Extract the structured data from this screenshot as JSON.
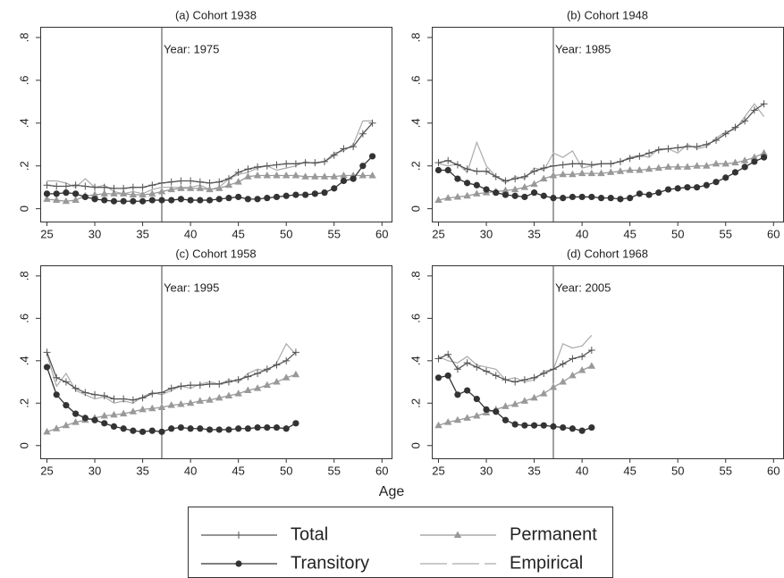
{
  "chart_data": [
    {
      "type": "line",
      "title": "(a) Cohort 1938",
      "x": [
        25,
        26,
        27,
        28,
        29,
        30,
        31,
        32,
        33,
        34,
        35,
        36,
        37,
        38,
        39,
        40,
        41,
        42,
        43,
        44,
        45,
        46,
        47,
        48,
        49,
        50,
        51,
        52,
        53,
        54,
        55,
        56,
        57,
        58,
        59
      ],
      "series": [
        {
          "name": "Total",
          "color": "#555555",
          "marker": "plus",
          "values": [
            0.11,
            0.105,
            0.105,
            0.11,
            0.105,
            0.1,
            0.1,
            0.095,
            0.095,
            0.1,
            0.1,
            0.11,
            0.12,
            0.125,
            0.13,
            0.13,
            0.125,
            0.12,
            0.125,
            0.14,
            0.17,
            0.185,
            0.195,
            0.2,
            0.205,
            0.21,
            0.21,
            0.215,
            0.215,
            0.22,
            0.25,
            0.28,
            0.29,
            0.35,
            0.4
          ]
        },
        {
          "name": "Transitory",
          "color": "#333333",
          "marker": "circle",
          "values": [
            0.07,
            0.07,
            0.075,
            0.07,
            0.055,
            0.045,
            0.04,
            0.035,
            0.035,
            0.035,
            0.035,
            0.04,
            0.04,
            0.04,
            0.045,
            0.04,
            0.04,
            0.04,
            0.045,
            0.05,
            0.055,
            0.045,
            0.045,
            0.05,
            0.055,
            0.06,
            0.065,
            0.065,
            0.07,
            0.075,
            0.095,
            0.13,
            0.14,
            0.2,
            0.245
          ]
        },
        {
          "name": "Permanent",
          "color": "#999999",
          "marker": "triangle",
          "values": [
            0.045,
            0.04,
            0.035,
            0.04,
            0.06,
            0.065,
            0.07,
            0.07,
            0.07,
            0.065,
            0.065,
            0.07,
            0.08,
            0.09,
            0.095,
            0.095,
            0.095,
            0.09,
            0.095,
            0.11,
            0.125,
            0.15,
            0.155,
            0.155,
            0.155,
            0.155,
            0.155,
            0.15,
            0.15,
            0.15,
            0.15,
            0.155,
            0.155,
            0.155,
            0.155
          ]
        },
        {
          "name": "Empirical",
          "color": "#aaaaaa",
          "marker": "none",
          "dashed": true,
          "values": [
            0.13,
            0.13,
            0.12,
            0.1,
            0.14,
            0.1,
            0.11,
            0.08,
            0.07,
            0.08,
            0.07,
            0.09,
            0.1,
            0.1,
            0.1,
            0.1,
            0.11,
            0.09,
            0.1,
            0.14,
            0.16,
            0.17,
            0.19,
            0.2,
            0.18,
            0.19,
            0.2,
            0.22,
            0.21,
            0.22,
            0.26,
            0.27,
            0.3,
            0.41,
            0.41
          ]
        }
      ],
      "vline": 37,
      "annotation": "Year: 1975",
      "xlim": [
        24.3,
        61
      ],
      "xticks": [
        25,
        30,
        35,
        40,
        45,
        50,
        55,
        60
      ],
      "ylim": [
        -0.06,
        0.85
      ],
      "yticks": [
        0,
        {
          "value": 0.2,
          "label": ".2"
        },
        {
          "value": 0.4,
          "label": ".4"
        },
        {
          "value": 0.6,
          "label": ".6"
        },
        {
          "value": 0.8,
          "label": ".8"
        }
      ]
    },
    {
      "type": "line",
      "title": "(b) Cohort 1948",
      "x": [
        25,
        26,
        27,
        28,
        29,
        30,
        31,
        32,
        33,
        34,
        35,
        36,
        37,
        38,
        39,
        40,
        41,
        42,
        43,
        44,
        45,
        46,
        47,
        48,
        49,
        50,
        51,
        52,
        53,
        54,
        55,
        56,
        57,
        58,
        59
      ],
      "series": [
        {
          "name": "Total",
          "color": "#555555",
          "marker": "plus",
          "values": [
            0.215,
            0.225,
            0.205,
            0.185,
            0.175,
            0.175,
            0.15,
            0.13,
            0.14,
            0.15,
            0.175,
            0.19,
            0.2,
            0.205,
            0.21,
            0.21,
            0.205,
            0.21,
            0.21,
            0.22,
            0.235,
            0.245,
            0.26,
            0.275,
            0.28,
            0.285,
            0.29,
            0.29,
            0.3,
            0.32,
            0.35,
            0.38,
            0.41,
            0.46,
            0.49
          ]
        },
        {
          "name": "Transitory",
          "color": "#333333",
          "marker": "circle",
          "values": [
            0.18,
            0.18,
            0.14,
            0.12,
            0.11,
            0.09,
            0.075,
            0.065,
            0.06,
            0.055,
            0.075,
            0.06,
            0.05,
            0.05,
            0.055,
            0.055,
            0.055,
            0.05,
            0.05,
            0.045,
            0.05,
            0.07,
            0.065,
            0.075,
            0.09,
            0.095,
            0.1,
            0.1,
            0.11,
            0.125,
            0.145,
            0.17,
            0.195,
            0.22,
            0.24
          ]
        },
        {
          "name": "Permanent",
          "color": "#999999",
          "marker": "triangle",
          "values": [
            0.04,
            0.05,
            0.055,
            0.06,
            0.07,
            0.075,
            0.08,
            0.085,
            0.09,
            0.1,
            0.115,
            0.14,
            0.155,
            0.16,
            0.16,
            0.165,
            0.165,
            0.165,
            0.17,
            0.175,
            0.18,
            0.18,
            0.185,
            0.19,
            0.195,
            0.195,
            0.195,
            0.2,
            0.2,
            0.21,
            0.21,
            0.215,
            0.225,
            0.24,
            0.26
          ]
        },
        {
          "name": "Empirical",
          "color": "#aaaaaa",
          "marker": "none",
          "dashed": true,
          "values": [
            0.21,
            0.2,
            0.21,
            0.17,
            0.31,
            0.2,
            0.15,
            0.12,
            0.15,
            0.14,
            0.19,
            0.18,
            0.26,
            0.24,
            0.27,
            0.19,
            0.2,
            0.21,
            0.21,
            0.22,
            0.24,
            0.25,
            0.24,
            0.28,
            0.28,
            0.26,
            0.3,
            0.28,
            0.29,
            0.33,
            0.36,
            0.37,
            0.43,
            0.49,
            0.43
          ]
        }
      ],
      "vline": 37,
      "annotation": "Year: 1985",
      "xlim": [
        24.3,
        61
      ],
      "xticks": [
        25,
        30,
        35,
        40,
        45,
        50,
        55,
        60
      ],
      "ylim": [
        -0.06,
        0.85
      ],
      "yticks": [
        0,
        {
          "value": 0.2,
          "label": ".2"
        },
        {
          "value": 0.4,
          "label": ".4"
        },
        {
          "value": 0.6,
          "label": ".6"
        },
        {
          "value": 0.8,
          "label": ".8"
        }
      ]
    },
    {
      "type": "line",
      "title": "(c) Cohort 1958",
      "x": [
        25,
        26,
        27,
        28,
        29,
        30,
        31,
        32,
        33,
        34,
        35,
        36,
        37,
        38,
        39,
        40,
        41,
        42,
        43,
        44,
        45,
        46,
        47,
        48,
        49,
        50,
        51
      ],
      "series": [
        {
          "name": "Total",
          "color": "#555555",
          "marker": "plus",
          "values": [
            0.44,
            0.32,
            0.3,
            0.27,
            0.25,
            0.24,
            0.235,
            0.22,
            0.22,
            0.215,
            0.225,
            0.245,
            0.25,
            0.27,
            0.28,
            0.285,
            0.285,
            0.29,
            0.29,
            0.3,
            0.31,
            0.325,
            0.34,
            0.36,
            0.38,
            0.4,
            0.44
          ]
        },
        {
          "name": "Transitory",
          "color": "#333333",
          "marker": "circle",
          "values": [
            0.37,
            0.24,
            0.19,
            0.15,
            0.13,
            0.12,
            0.105,
            0.09,
            0.08,
            0.07,
            0.065,
            0.07,
            0.065,
            0.08,
            0.085,
            0.08,
            0.08,
            0.075,
            0.075,
            0.075,
            0.08,
            0.08,
            0.085,
            0.085,
            0.085,
            0.08,
            0.105
          ]
        },
        {
          "name": "Permanent",
          "color": "#999999",
          "marker": "triangle",
          "values": [
            0.065,
            0.08,
            0.095,
            0.11,
            0.12,
            0.13,
            0.14,
            0.145,
            0.15,
            0.16,
            0.17,
            0.175,
            0.18,
            0.19,
            0.195,
            0.2,
            0.21,
            0.215,
            0.225,
            0.235,
            0.245,
            0.26,
            0.27,
            0.285,
            0.3,
            0.32,
            0.335
          ]
        },
        {
          "name": "Empirical",
          "color": "#aaaaaa",
          "marker": "none",
          "dashed": true,
          "values": [
            0.43,
            0.28,
            0.34,
            0.26,
            0.24,
            0.22,
            0.23,
            0.2,
            0.21,
            0.2,
            0.23,
            0.25,
            0.24,
            0.26,
            0.28,
            0.27,
            0.29,
            0.3,
            0.29,
            0.31,
            0.3,
            0.34,
            0.36,
            0.35,
            0.39,
            0.48,
            0.43
          ]
        }
      ],
      "vline": 37,
      "annotation": "Year: 1995",
      "xlim": [
        24.3,
        61
      ],
      "xticks": [
        25,
        30,
        35,
        40,
        45,
        50,
        55,
        60
      ],
      "ylim": [
        -0.06,
        0.85
      ],
      "yticks": [
        0,
        {
          "value": 0.2,
          "label": ".2"
        },
        {
          "value": 0.4,
          "label": ".4"
        },
        {
          "value": 0.6,
          "label": ".6"
        },
        {
          "value": 0.8,
          "label": ".8"
        }
      ]
    },
    {
      "type": "line",
      "title": "(d) Cohort 1968",
      "x": [
        25,
        26,
        27,
        28,
        29,
        30,
        31,
        32,
        33,
        34,
        35,
        36,
        37,
        38,
        39,
        40,
        41
      ],
      "series": [
        {
          "name": "Total",
          "color": "#555555",
          "marker": "plus",
          "values": [
            0.41,
            0.43,
            0.36,
            0.39,
            0.37,
            0.35,
            0.33,
            0.31,
            0.3,
            0.31,
            0.32,
            0.34,
            0.36,
            0.385,
            0.41,
            0.42,
            0.45
          ]
        },
        {
          "name": "Transitory",
          "color": "#333333",
          "marker": "circle",
          "values": [
            0.32,
            0.33,
            0.24,
            0.26,
            0.22,
            0.17,
            0.16,
            0.12,
            0.1,
            0.095,
            0.095,
            0.095,
            0.09,
            0.085,
            0.08,
            0.07,
            0.085
          ]
        },
        {
          "name": "Permanent",
          "color": "#999999",
          "marker": "triangle",
          "values": [
            0.095,
            0.11,
            0.12,
            0.13,
            0.14,
            0.155,
            0.17,
            0.185,
            0.195,
            0.21,
            0.225,
            0.245,
            0.275,
            0.3,
            0.33,
            0.355,
            0.375
          ]
        },
        {
          "name": "Empirical",
          "color": "#aaaaaa",
          "marker": "none",
          "dashed": true,
          "values": [
            0.42,
            0.4,
            0.39,
            0.42,
            0.38,
            0.37,
            0.36,
            0.31,
            0.32,
            0.3,
            0.31,
            0.35,
            0.36,
            0.48,
            0.46,
            0.47,
            0.52
          ]
        }
      ],
      "vline": 37,
      "annotation": "Year: 2005",
      "xlim": [
        24.3,
        61
      ],
      "xticks": [
        25,
        30,
        35,
        40,
        45,
        50,
        55,
        60
      ],
      "ylim": [
        -0.06,
        0.85
      ],
      "yticks": [
        0,
        {
          "value": 0.2,
          "label": ".2"
        },
        {
          "value": 0.4,
          "label": ".4"
        },
        {
          "value": 0.6,
          "label": ".6"
        },
        {
          "value": 0.8,
          "label": ".8"
        }
      ]
    }
  ],
  "xlabel": "Age"
}
